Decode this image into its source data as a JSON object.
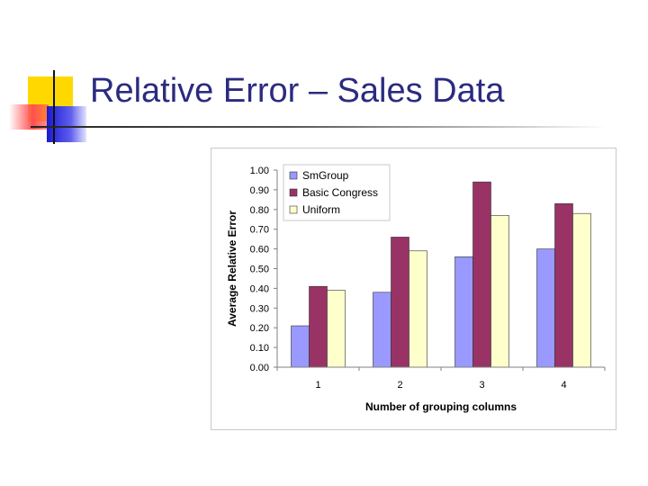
{
  "slide": {
    "title": "Relative Error – Sales Data"
  },
  "chart_data": {
    "type": "bar",
    "categories": [
      "1",
      "2",
      "3",
      "4"
    ],
    "series": [
      {
        "name": "SmGroup",
        "values": [
          0.21,
          0.38,
          0.56,
          0.6
        ],
        "color": "#9999ff"
      },
      {
        "name": "Basic Congress",
        "values": [
          0.41,
          0.66,
          0.94,
          0.83
        ],
        "color": "#993366"
      },
      {
        "name": "Uniform",
        "values": [
          0.39,
          0.59,
          0.77,
          0.78
        ],
        "color": "#ffffcc"
      }
    ],
    "title": "",
    "xlabel": "Number of grouping columns",
    "ylabel": "Average Relative Error",
    "ylim": [
      0,
      1.0
    ],
    "yticks": [
      "0.00",
      "0.10",
      "0.20",
      "0.30",
      "0.40",
      "0.50",
      "0.60",
      "0.70",
      "0.80",
      "0.90",
      "1.00"
    ],
    "grid": false,
    "legend": "top-left inside plot"
  }
}
